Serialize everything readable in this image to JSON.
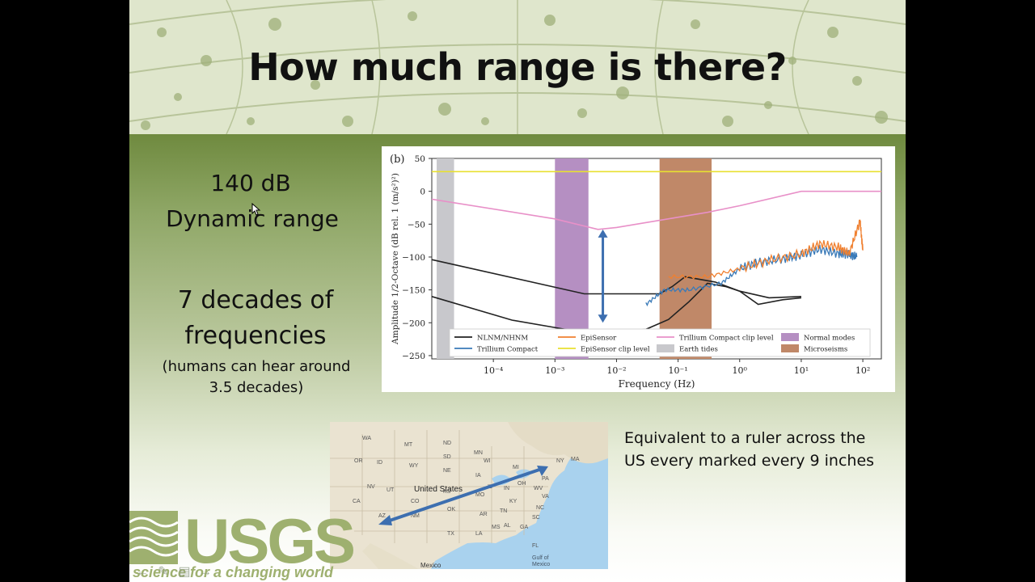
{
  "slide": {
    "title": "How much range is there?",
    "dynamic_range_value": "140 dB",
    "dynamic_range_label": "Dynamic range",
    "decades_line1": "7 decades of",
    "decades_line2": "frequencies",
    "decades_note": "(humans can hear around 3.5 decades)",
    "ruler_text": "Equivalent to a ruler across the US every marked every 9 inches"
  },
  "logo": {
    "word": "USGS",
    "tagline": "science for a changing world"
  },
  "map": {
    "country_label": "United States",
    "mexico_label": "Mexico",
    "gulf_label_1": "Gulf of",
    "gulf_label_2": "Mexico",
    "state_labels": [
      "ND",
      "MT",
      "WY",
      "SD",
      "NE",
      "NV",
      "UT",
      "CO",
      "KS",
      "MO",
      "OK",
      "NM",
      "TX",
      "AR",
      "MS",
      "AL",
      "GA",
      "TN",
      "KY",
      "IL",
      "IN",
      "OH",
      "WV",
      "VA",
      "NC",
      "SC",
      "PA",
      "NY",
      "MI",
      "WI",
      "IA",
      "MN",
      "OR",
      "ID",
      "CA",
      "AZ",
      "MA",
      "WA",
      "FL",
      "LA"
    ]
  },
  "navigation": {
    "prev_icon": "arrow-left-icon",
    "pen_icon": "pen-icon",
    "menu_icon": "slides-icon",
    "next_icon": "arrow-right-icon"
  },
  "colors": {
    "nlnm": "#222222",
    "trillium": "#3a7ab8",
    "episensor": "#f08030",
    "episensor_clip": "#e8e030",
    "trillium_clip": "#e890c8",
    "earth_tides": "#c8c8cc",
    "normal_modes": "#b58fc2",
    "microseisms": "#c08868",
    "range_arrow": "#3d6fb0",
    "logo": "#9eb06f"
  },
  "chart_data": {
    "type": "line",
    "panel_label": "(b)",
    "xlabel": "Frequency (Hz)",
    "ylabel": "Amplitude 1/2-Octave (dB rel. 1 (m/s²)²)",
    "x_scale": "log",
    "xlim": [
      1e-05,
      200
    ],
    "ylim": [
      -255,
      50
    ],
    "x_ticks": [
      "10⁻⁴",
      "10⁻³",
      "10⁻²",
      "10⁻¹",
      "10⁰",
      "10¹",
      "10²"
    ],
    "x_tick_values": [
      0.0001,
      0.001,
      0.01,
      0.1,
      1,
      10,
      100
    ],
    "y_ticks": [
      "50",
      "0",
      "−50",
      "−100",
      "−150",
      "−200",
      "−250"
    ],
    "y_tick_values": [
      50,
      0,
      -50,
      -100,
      -150,
      -200,
      -250
    ],
    "bands": [
      {
        "name": "Earth tides",
        "from": 1.2e-05,
        "to": 2.3e-05,
        "color": "#c8c8cc"
      },
      {
        "name": "Normal modes",
        "from": 0.001,
        "to": 0.0035,
        "color": "#b58fc2"
      },
      {
        "name": "Microseisms",
        "from": 0.05,
        "to": 0.35,
        "color": "#c08868"
      }
    ],
    "series": [
      {
        "name": "NLNM/NHNM",
        "kind": "nhnm",
        "color": "#222222",
        "x": [
          1e-05,
          0.003,
          0.05,
          0.08,
          0.13,
          0.4,
          1.0,
          3,
          10
        ],
        "y": [
          -104,
          -156,
          -156,
          -145,
          -130,
          -138,
          -152,
          -162,
          -160
        ]
      },
      {
        "name": "NLNM/NHNM",
        "kind": "nlnm",
        "color": "#222222",
        "x": [
          1e-05,
          0.0002,
          0.003,
          0.01,
          0.03,
          0.07,
          0.15,
          0.3,
          0.6,
          1.0,
          2,
          5,
          10
        ],
        "y": [
          -160,
          -196,
          -215,
          -213,
          -210,
          -195,
          -168,
          -140,
          -145,
          -152,
          -172,
          -165,
          -162
        ]
      },
      {
        "name": "Trillium Compact",
        "color": "#3a7ab8",
        "x": [
          0.03,
          0.06,
          0.15,
          0.5,
          1,
          2,
          5,
          10,
          20,
          40,
          60,
          80
        ],
        "y": [
          -172,
          -150,
          -150,
          -140,
          -118,
          -108,
          -103,
          -97,
          -88,
          -95,
          -96,
          -100
        ]
      },
      {
        "name": "EpiSensor",
        "color": "#f08030",
        "x": [
          0.07,
          0.3,
          1,
          3,
          10,
          20,
          40,
          60,
          90,
          100
        ],
        "y": [
          -130,
          -130,
          -118,
          -105,
          -95,
          -80,
          -85,
          -95,
          -45,
          -90
        ]
      },
      {
        "name": "EpiSensor clip level",
        "color": "#e8e030",
        "x": [
          1e-05,
          200
        ],
        "y": [
          30,
          30
        ]
      },
      {
        "name": "Trillium Compact clip level",
        "color": "#e890c8",
        "x": [
          1e-05,
          0.001,
          0.005,
          0.01,
          0.3,
          1,
          10,
          200
        ],
        "y": [
          -12,
          -42,
          -58,
          -55,
          -32,
          -22,
          0,
          0
        ]
      }
    ],
    "legend": [
      {
        "name": "NLNM/NHNM",
        "swatch": "line",
        "color": "#222222"
      },
      {
        "name": "EpiSensor",
        "swatch": "line",
        "color": "#f08030"
      },
      {
        "name": "Trillium Compact clip level",
        "swatch": "line",
        "color": "#e890c8"
      },
      {
        "name": "Normal modes",
        "swatch": "patch",
        "color": "#b58fc2"
      },
      {
        "name": "Trillium Compact",
        "swatch": "line",
        "color": "#3a7ab8"
      },
      {
        "name": "EpiSensor clip level",
        "swatch": "line",
        "color": "#e8e030"
      },
      {
        "name": "Earth tides",
        "swatch": "patch",
        "color": "#c8c8cc"
      },
      {
        "name": "Microseisms",
        "swatch": "patch",
        "color": "#c08868"
      }
    ],
    "legend_position": "bottom-inside",
    "annotations": [
      {
        "type": "double-arrow",
        "x": 0.006,
        "y_from": -58,
        "y_to": -200,
        "color": "#3d6fb0"
      }
    ],
    "grid": false
  }
}
